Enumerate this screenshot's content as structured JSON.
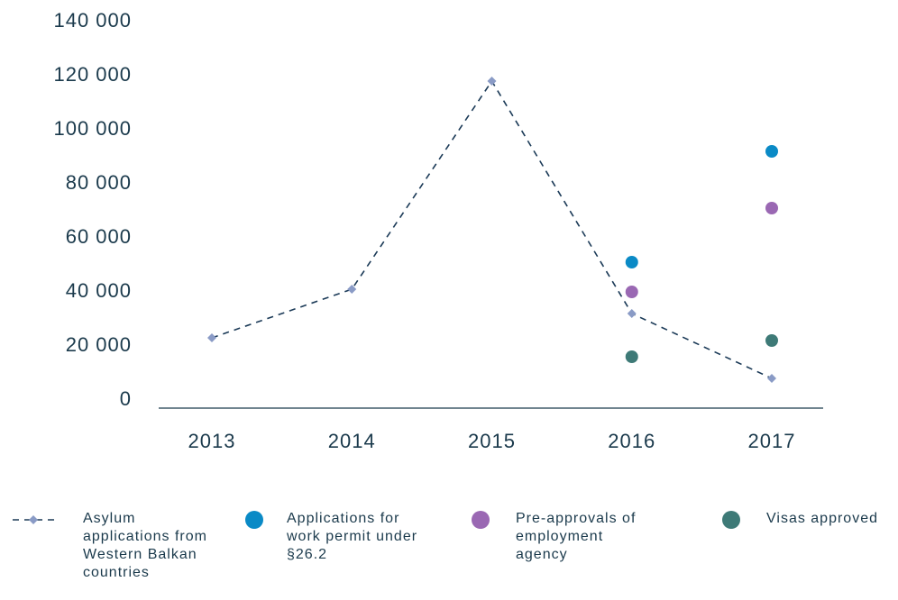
{
  "chart_data": {
    "type": "line",
    "categories": [
      "2013",
      "2014",
      "2015",
      "2016",
      "2017"
    ],
    "ylim": [
      0,
      140000
    ],
    "yticks": [
      0,
      {
        "value": 20000,
        "label": "20 000"
      },
      {
        "value": 40000,
        "label": "40 000"
      },
      {
        "value": 60000,
        "label": "60 000"
      },
      {
        "value": 80000,
        "label": "80 000"
      },
      {
        "value": 100000,
        "label": "100 000"
      },
      {
        "value": 120000,
        "label": "120 000"
      },
      {
        "value": 140000,
        "label": "140 000"
      }
    ],
    "grid": false,
    "legend": "bottom",
    "series": [
      {
        "name": "Asylum applications from Western Balkan countries",
        "type": "line",
        "color": "#1b3a57",
        "marker_color": "#8a9bc6",
        "values": [
          23000,
          41000,
          118000,
          32000,
          8000
        ]
      },
      {
        "name": "Applications for work permit under §26.2",
        "type": "scatter",
        "color": "#0a8ac6",
        "values": [
          null,
          null,
          null,
          51000,
          92000
        ]
      },
      {
        "name": "Pre-approvals of employment agency",
        "type": "scatter",
        "color": "#9a68b3",
        "values": [
          null,
          null,
          null,
          40000,
          71000
        ]
      },
      {
        "name": "Visas approved",
        "type": "scatter",
        "color": "#3e7a77",
        "values": [
          null,
          null,
          null,
          16000,
          22000
        ]
      }
    ]
  }
}
